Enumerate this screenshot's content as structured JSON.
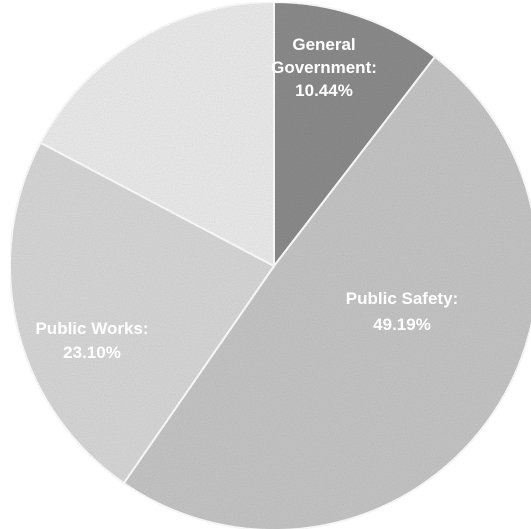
{
  "chart_data": {
    "type": "pie",
    "title": "",
    "start_angle_deg": 0,
    "direction": "clockwise",
    "slices": [
      {
        "label_lines": [
          "General",
          "Government:",
          "10.44%"
        ],
        "value": 10.44,
        "color": "#8c8c8c"
      },
      {
        "label_lines": [
          "Public Safety:",
          "49.19%"
        ],
        "value": 49.19,
        "color": "#c6c6c6"
      },
      {
        "label_lines": [
          "Public Works:",
          "23.10%"
        ],
        "value": 23.1,
        "color": "#d8d8d8"
      },
      {
        "label_lines": [],
        "value": 17.27,
        "color": "#ececec"
      }
    ]
  }
}
